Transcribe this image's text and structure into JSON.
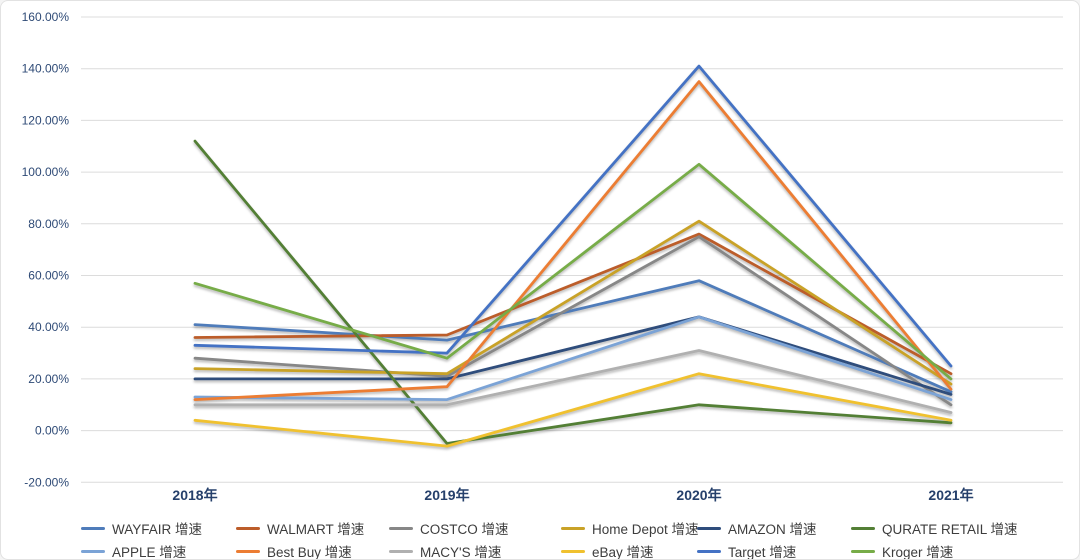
{
  "chart_data": {
    "type": "line",
    "categories": [
      "2018年",
      "2019年",
      "2020年",
      "2021年"
    ],
    "series": [
      {
        "name": "WAYFAIR 增速",
        "color": "#4f7cba",
        "values": [
          41,
          35,
          58,
          15
        ]
      },
      {
        "name": "WALMART 增速",
        "color": "#bc5d2a",
        "values": [
          36,
          37,
          76,
          22
        ]
      },
      {
        "name": "COSTCO 增速",
        "color": "#878787",
        "values": [
          28,
          21,
          75,
          10
        ]
      },
      {
        "name": "Home Depot 增速",
        "color": "#c9a227",
        "values": [
          24,
          22,
          81,
          18
        ]
      },
      {
        "name": "AMAZON 增速",
        "color": "#2f4d7c",
        "values": [
          20,
          20,
          44,
          14
        ]
      },
      {
        "name": "QURATE RETAIL 增速",
        "color": "#537f35",
        "values": [
          112,
          -5,
          10,
          3
        ]
      },
      {
        "name": "APPLE 增速",
        "color": "#7ba3d6",
        "values": [
          13,
          12,
          44,
          12
        ]
      },
      {
        "name": "Best Buy 增速",
        "color": "#ec7d33",
        "values": [
          12,
          17,
          135,
          16
        ]
      },
      {
        "name": "MACY'S 增速",
        "color": "#b0b0b0",
        "values": [
          10,
          10,
          31,
          7
        ]
      },
      {
        "name": "eBay 增速",
        "color": "#f0c12f",
        "values": [
          4,
          -6,
          22,
          4
        ]
      },
      {
        "name": "Target 增速",
        "color": "#4472c4",
        "values": [
          33,
          30,
          141,
          25
        ]
      },
      {
        "name": "Kroger 增速",
        "color": "#77ac48",
        "values": [
          57,
          28,
          103,
          20
        ]
      }
    ],
    "y_axis": {
      "min": -20,
      "max": 160,
      "step": 20,
      "tick_labels": [
        "160.00%",
        "140.00%",
        "120.00%",
        "100.00%",
        "80.00%",
        "60.00%",
        "40.00%",
        "20.00%",
        "0.00%",
        "-20.00%"
      ]
    },
    "xlabel": "",
    "ylabel": "",
    "title": "",
    "grid": true,
    "legend_position": "bottom",
    "legend_rows": [
      [
        "WAYFAIR 增速",
        "WALMART 增速",
        "COSTCO 增速",
        "Home Depot 增速",
        "AMAZON 增速",
        "QURATE RETAIL 增速"
      ],
      [
        "APPLE 增速",
        "Best Buy 增速",
        "MACY'S 增速",
        "eBay 增速",
        "Target 增速",
        "Kroger 增速"
      ]
    ]
  },
  "colors": {
    "background": "#ffffff",
    "gridline": "#dcdcdc",
    "y_tick_text": "#2e4a76",
    "x_label_text": "#26406b",
    "legend_text": "#3d3d3d"
  }
}
